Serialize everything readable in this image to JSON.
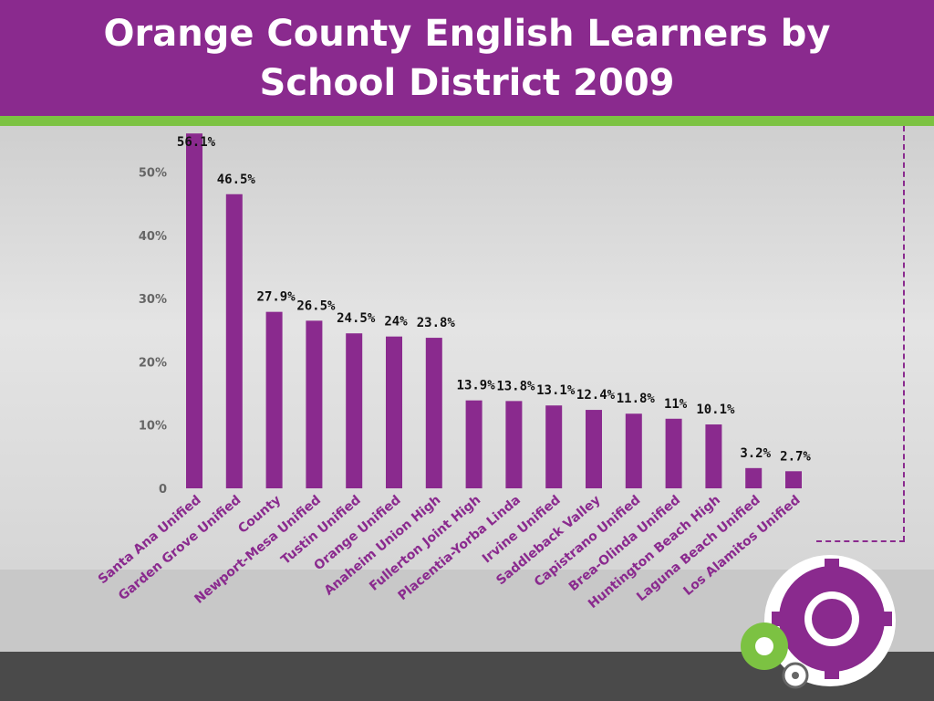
{
  "slide": {
    "title": "Orange County English Learners by\nSchool District 2009"
  },
  "colors": {
    "header": "#8a2a8e",
    "stripe": "#7cc242",
    "bar": "#8a2a8e",
    "footer_dark": "#4a4a4a"
  },
  "chart_data": {
    "type": "bar",
    "title": "",
    "xlabel": "",
    "ylabel": "",
    "ylim": [
      0,
      55
    ],
    "yticks": [
      0,
      10,
      20,
      30,
      40,
      50
    ],
    "ytick_labels": [
      "0",
      "10%",
      "20%",
      "30%",
      "40%",
      "50%"
    ],
    "grid": false,
    "categories": [
      "Santa Ana Unified",
      "Garden Grove Unified",
      "County",
      "Newport-Mesa Unified",
      "Tustin Unified",
      "Orange Unified",
      "Anaheim Union High",
      "Fullerton Joint High",
      "Placentia-Yorba Linda",
      "Irvine Unified",
      "Saddleback Valley",
      "Capistrano Unified",
      "Brea-Olinda Unified",
      "Huntington Beach High",
      "Laguna Beach Unified",
      "Los Alamitos Unified"
    ],
    "values": [
      56.1,
      46.5,
      27.9,
      26.5,
      24.5,
      24,
      23.8,
      13.9,
      13.8,
      13.1,
      12.4,
      11.8,
      11,
      10.1,
      3.2,
      2.7
    ],
    "data_labels": [
      "56.1%",
      "46.5%",
      "27.9%",
      "26.5%",
      "24.5%",
      "24%",
      "23.8%",
      "13.9%",
      "13.8%",
      "13.1%",
      "12.4%",
      "11.8%",
      "11%",
      "10.1%",
      "3.2%",
      "2.7%"
    ]
  }
}
